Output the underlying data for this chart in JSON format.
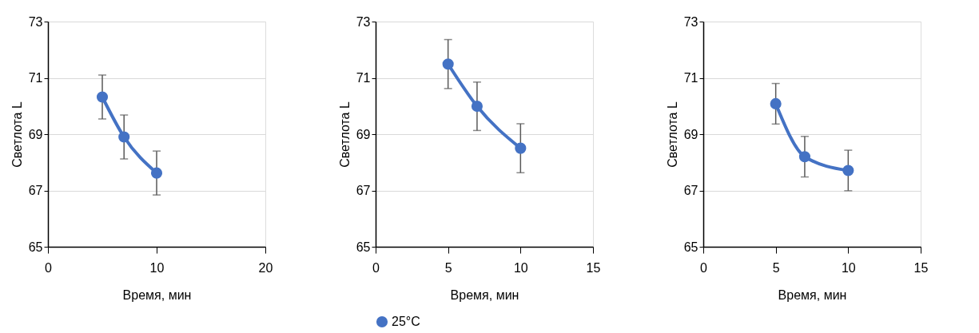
{
  "chart_data": [
    {
      "type": "line",
      "xlabel": "Время, мин",
      "ylabel": "Светлота L",
      "x": [
        5,
        7,
        10
      ],
      "xlim": [
        0,
        20
      ],
      "xticks": [
        0,
        10,
        20
      ],
      "ylim": [
        65,
        73
      ],
      "yticks": [
        65,
        67,
        69,
        71,
        73
      ],
      "grid": "y",
      "marker": "circle",
      "line_style": "solid",
      "series": [
        {
          "color": "#4472c4",
          "values": [
            70.32,
            68.9,
            67.62
          ],
          "errors": [
            0.78,
            0.78,
            0.78
          ]
        }
      ]
    },
    {
      "type": "line",
      "xlabel": "Время, мин",
      "ylabel": "Светлота L",
      "x": [
        5,
        7,
        10
      ],
      "xlim": [
        0,
        15
      ],
      "xticks": [
        0,
        5,
        10,
        15
      ],
      "ylim": [
        65,
        73
      ],
      "yticks": [
        65,
        67,
        69,
        71,
        73
      ],
      "grid": "y",
      "marker": "circle",
      "line_style": "solid",
      "legend": "bottom",
      "series": [
        {
          "name": "25°C",
          "color": "#4472c4",
          "values": [
            71.49,
            69.99,
            68.5
          ],
          "errors": [
            0.87,
            0.86,
            0.87
          ]
        }
      ]
    },
    {
      "type": "line",
      "xlabel": "Время, мин",
      "ylabel": "Светлота L",
      "x": [
        5,
        7,
        10
      ],
      "xlim": [
        0,
        15
      ],
      "xticks": [
        0,
        5,
        10,
        15
      ],
      "ylim": [
        65,
        73
      ],
      "yticks": [
        65,
        67,
        69,
        71,
        73
      ],
      "grid": "y",
      "marker": "circle",
      "line_style": "solid",
      "series": [
        {
          "color": "#4472c4",
          "values": [
            70.08,
            68.2,
            67.71
          ],
          "errors": [
            0.72,
            0.72,
            0.72
          ]
        }
      ]
    }
  ]
}
